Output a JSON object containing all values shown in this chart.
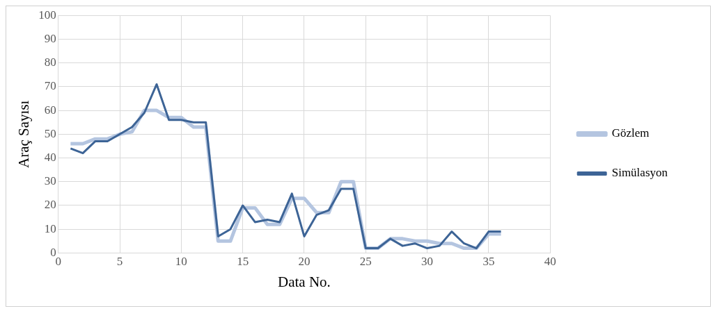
{
  "chart_data": {
    "type": "line",
    "xlabel": "Data No.",
    "ylabel": "Araç Sayısı",
    "x": [
      1,
      2,
      3,
      4,
      5,
      6,
      7,
      8,
      9,
      10,
      11,
      12,
      13,
      14,
      15,
      16,
      17,
      18,
      19,
      20,
      21,
      22,
      23,
      24,
      25,
      26,
      27,
      28,
      29,
      30,
      31,
      32,
      33,
      34,
      35,
      36
    ],
    "series": [
      {
        "name": "Gözlem",
        "color": "#b4c5e0",
        "values": [
          46,
          46,
          48,
          48,
          50,
          51,
          60,
          60,
          57,
          57,
          53,
          53,
          5,
          5,
          19,
          19,
          12,
          12,
          23,
          23,
          17,
          17,
          30,
          30,
          2,
          2,
          6,
          6,
          5,
          5,
          4,
          4,
          2,
          2,
          8,
          8
        ]
      },
      {
        "name": "Simülasyon",
        "color": "#3d6496",
        "values": [
          44,
          42,
          47,
          47,
          50,
          53,
          59,
          71,
          56,
          56,
          55,
          55,
          7,
          10,
          20,
          13,
          14,
          13,
          25,
          7,
          16,
          18,
          27,
          27,
          2,
          2,
          6,
          3,
          4,
          2,
          3,
          9,
          4,
          2,
          9,
          9
        ]
      }
    ],
    "xlim": [
      0,
      40
    ],
    "xticks": [
      0,
      5,
      10,
      15,
      20,
      25,
      30,
      35,
      40
    ],
    "ylim": [
      0,
      100
    ],
    "yticks": [
      0,
      10,
      20,
      30,
      40,
      50,
      60,
      70,
      80,
      90,
      100
    ],
    "grid": true,
    "legend": "right",
    "marker": "none",
    "line_style": "solid"
  }
}
